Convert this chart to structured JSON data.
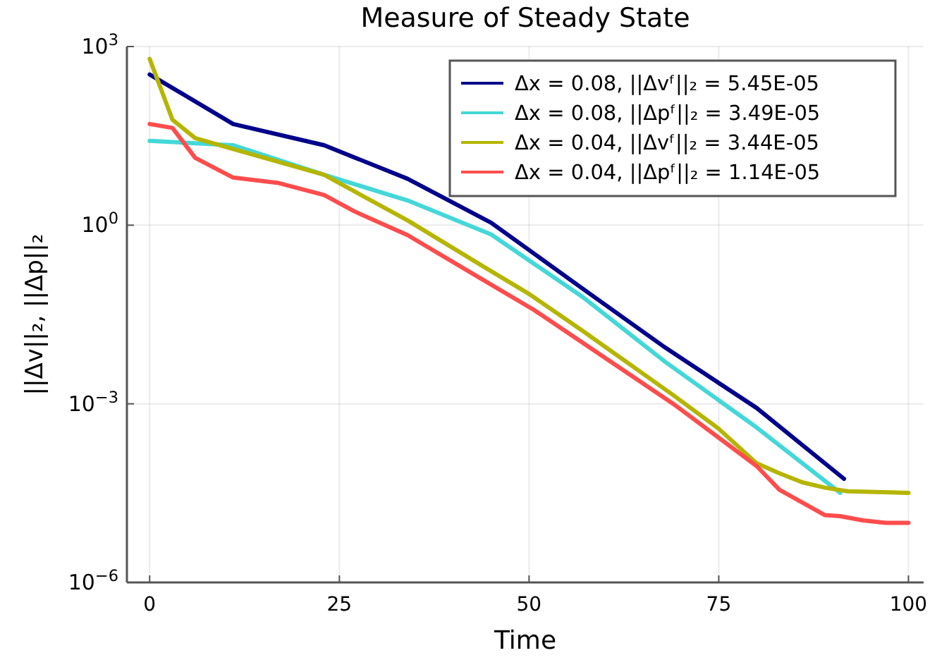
{
  "chart_data": {
    "type": "line",
    "title": "Measure of Steady State",
    "xlabel": "Time",
    "ylabel": "||Δv||₂,  ||Δp||₂",
    "log": true,
    "grid": true,
    "legend": "top right",
    "xlim": [
      -3,
      102
    ],
    "xticks": [
      0,
      25,
      50,
      75,
      100
    ],
    "ylim": [
      1e-06,
      1000
    ],
    "yticks": [
      {
        "value": 1e-06,
        "label": "10$^{−6}$"
      },
      {
        "value": 0.001,
        "label": "10$^{−3}$"
      },
      {
        "value": 1,
        "label": "10$^{0}$"
      },
      {
        "value": 1000,
        "label": "10$^{3}$"
      }
    ],
    "series": [
      {
        "name": "Δx = 0.08, ||Δvᶠ||₂  = 5.45E-05",
        "color": "#00008b",
        "x": [
          0,
          11,
          23,
          34,
          45,
          57,
          68,
          80,
          91.5
        ],
        "values": [
          340,
          50,
          22,
          6,
          1.1,
          0.087,
          0.0087,
          0.00085,
          5.5e-05
        ]
      },
      {
        "name": "Δx = 0.08, ||Δpᶠ||₂  = 3.49E-05",
        "color": "#44d7d8",
        "x": [
          0,
          11,
          23,
          34,
          45,
          57,
          68,
          80,
          91
        ],
        "values": [
          26,
          22,
          7,
          2.6,
          0.7,
          0.063,
          0.005,
          0.0004,
          3.2e-05
        ]
      },
      {
        "name": "Δx = 0.04, ||Δvᶠ||₂  = 3.44E-05",
        "color": "#b5b500",
        "x": [
          0,
          3,
          6,
          11,
          23,
          34,
          43.5,
          50,
          57,
          69,
          75,
          80,
          83,
          86,
          89,
          92,
          100
        ],
        "values": [
          620,
          59,
          29,
          19,
          7,
          1.2,
          0.22,
          0.07,
          0.017,
          0.0014,
          0.00038,
          0.0001,
          6.8e-05,
          4.8e-05,
          3.9e-05,
          3.4e-05,
          3.2e-05
        ]
      },
      {
        "name": "Δx = 0.04, ||Δpᶠ||₂  = 1.14E-05",
        "color": "#ff4c4c",
        "x": [
          0,
          3,
          6,
          11,
          17,
          23,
          27,
          34,
          43.5,
          50.6,
          69,
          80,
          83,
          89,
          91,
          94,
          97,
          100
        ],
        "values": [
          50,
          43,
          13.5,
          6.3,
          5.1,
          3.2,
          1.7,
          0.68,
          0.13,
          0.038,
          0.001,
          9e-05,
          3.6e-05,
          1.35e-05,
          1.3e-05,
          1.1e-05,
          1e-05,
          1e-05
        ]
      }
    ]
  }
}
